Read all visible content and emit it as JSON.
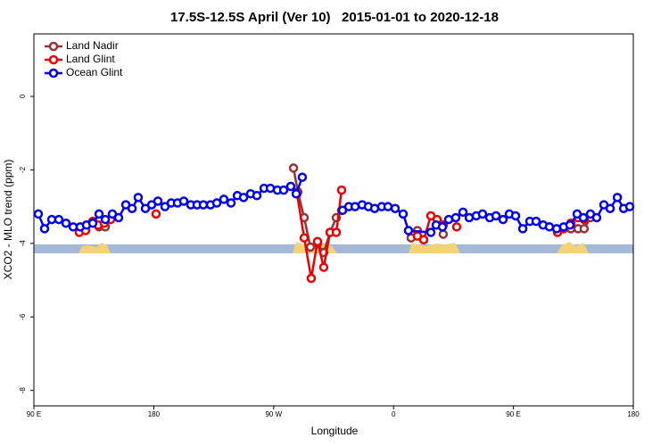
{
  "chart_data": {
    "type": "line",
    "title": "17.5S-12.5S April (Ver 10)   2015-01-01 to 2020-12-18",
    "xlabel": "Longitude",
    "ylabel": "XCO2 - MLO trend (ppm)",
    "xlim": [
      90,
      540
    ],
    "ylim": [
      -8.42,
      1.7
    ],
    "xticks": [
      {
        "value": 90,
        "label": "90 E"
      },
      180,
      {
        "value": 270,
        "label": "90 W"
      },
      {
        "value": 360,
        "label": "0"
      },
      {
        "value": 450,
        "label": "90 E"
      },
      {
        "value": 540,
        "label": "180"
      }
    ],
    "yticks": [
      0,
      -2,
      -4,
      -6,
      -8
    ],
    "legend": "top-left",
    "series": [
      {
        "name": "Land Nadir",
        "color": "#993333",
        "x": [
          138.9,
          143.6,
          null,
          284.9,
          288.2,
          292.9,
          297.6,
          302.9,
          307.6,
          312.3,
          317.0,
          321.0,
          null,
          373.2,
          377.9,
          382.6,
          null,
          397.3,
          null,
          493.1,
          498.5,
          503.1,
          507.8
        ],
        "values": [
          -3.55,
          -3.55,
          null,
          -1.95,
          -2.6,
          -3.3,
          -4.1,
          -4.0,
          -4.25,
          -3.7,
          -3.3,
          -3.1,
          null,
          -3.85,
          -3.65,
          -3.9,
          null,
          -3.75,
          null,
          -3.6,
          -3.6,
          -3.6,
          -3.3
        ]
      },
      {
        "name": "Land Glint",
        "color": "#ee0000",
        "x": [
          124.1,
          128.8,
          134.2,
          138.2,
          142.9,
          147.6,
          null,
          181.7,
          null,
          287.5,
          292.9,
          298.2,
          302.9,
          307.6,
          312.3,
          317.0,
          321.0,
          null,
          377.9,
          382.6,
          388.0,
          392.7,
          397.3,
          null,
          407.4,
          null,
          483.1,
          487.7,
          493.1,
          498.5,
          503.1
        ],
        "values": [
          -3.7,
          -3.65,
          -3.4,
          -3.5,
          -3.45,
          -3.35,
          null,
          -3.2,
          null,
          -2.65,
          -3.85,
          -4.95,
          -3.95,
          -4.65,
          -3.7,
          -3.7,
          -2.55,
          null,
          -3.8,
          -3.9,
          -3.25,
          -3.35,
          -3.5,
          null,
          -3.55,
          null,
          -3.7,
          -3.6,
          -3.45,
          -3.3,
          -3.35
        ]
      },
      {
        "name": "Ocean Glint",
        "color": "#0000ee",
        "x": [
          93.3,
          98.0,
          103.4,
          108.7,
          114.1,
          119.5,
          124.8,
          129.5,
          134.2,
          138.9,
          143.6,
          148.9,
          153.6,
          159.0,
          163.7,
          168.3,
          173.7,
          178.4,
          183.1,
          188.4,
          193.1,
          197.8,
          202.5,
          207.8,
          212.5,
          217.2,
          222.6,
          227.3,
          232.6,
          238.0,
          242.7,
          247.4,
          252.7,
          257.4,
          262.8,
          267.5,
          272.8,
          277.5,
          282.8,
          286.9,
          291.5,
          null,
          321.7,
          326.4,
          331.1,
          336.4,
          341.1,
          345.8,
          351.1,
          355.8,
          361.2,
          367.2,
          371.2,
          388.0,
          392.0,
          396.7,
          401.4,
          406.7,
          412.1,
          416.8,
          422.1,
          426.8,
          432.2,
          436.9,
          442.2,
          446.9,
          451.6,
          457.0,
          462.3,
          467.0,
          472.3,
          477.0,
          482.4,
          487.7,
          492.4,
          497.8,
          502.5,
          507.8,
          512.5,
          517.9,
          522.6,
          528.0,
          532.7,
          537.3
        ],
        "values": [
          -3.2,
          -3.6,
          -3.35,
          -3.35,
          -3.45,
          -3.55,
          -3.55,
          -3.5,
          -3.45,
          -3.2,
          -3.35,
          -3.2,
          -3.3,
          -2.95,
          -3.05,
          -2.75,
          -3.05,
          -2.95,
          -2.85,
          -3.0,
          -2.9,
          -2.9,
          -2.85,
          -2.95,
          -2.95,
          -2.95,
          -2.95,
          -2.9,
          -2.8,
          -2.9,
          -2.7,
          -2.75,
          -2.65,
          -2.7,
          -2.5,
          -2.5,
          -2.55,
          -2.55,
          -2.45,
          -2.65,
          -2.2,
          null,
          -3.1,
          -3.0,
          -3.0,
          -2.95,
          -3.0,
          -3.05,
          -3.0,
          -3.0,
          -3.05,
          -3.2,
          -3.65,
          -3.7,
          -3.5,
          -3.55,
          -3.35,
          -3.3,
          -3.15,
          -3.3,
          -3.25,
          -3.2,
          -3.3,
          -3.25,
          -3.35,
          -3.2,
          -3.25,
          -3.6,
          -3.4,
          -3.4,
          -3.5,
          -3.55,
          -3.6,
          -3.55,
          -3.5,
          -3.2,
          -3.3,
          -3.2,
          -3.3,
          -2.95,
          -3.05,
          -2.75,
          -3.05,
          -3.0
        ]
      }
    ]
  }
}
